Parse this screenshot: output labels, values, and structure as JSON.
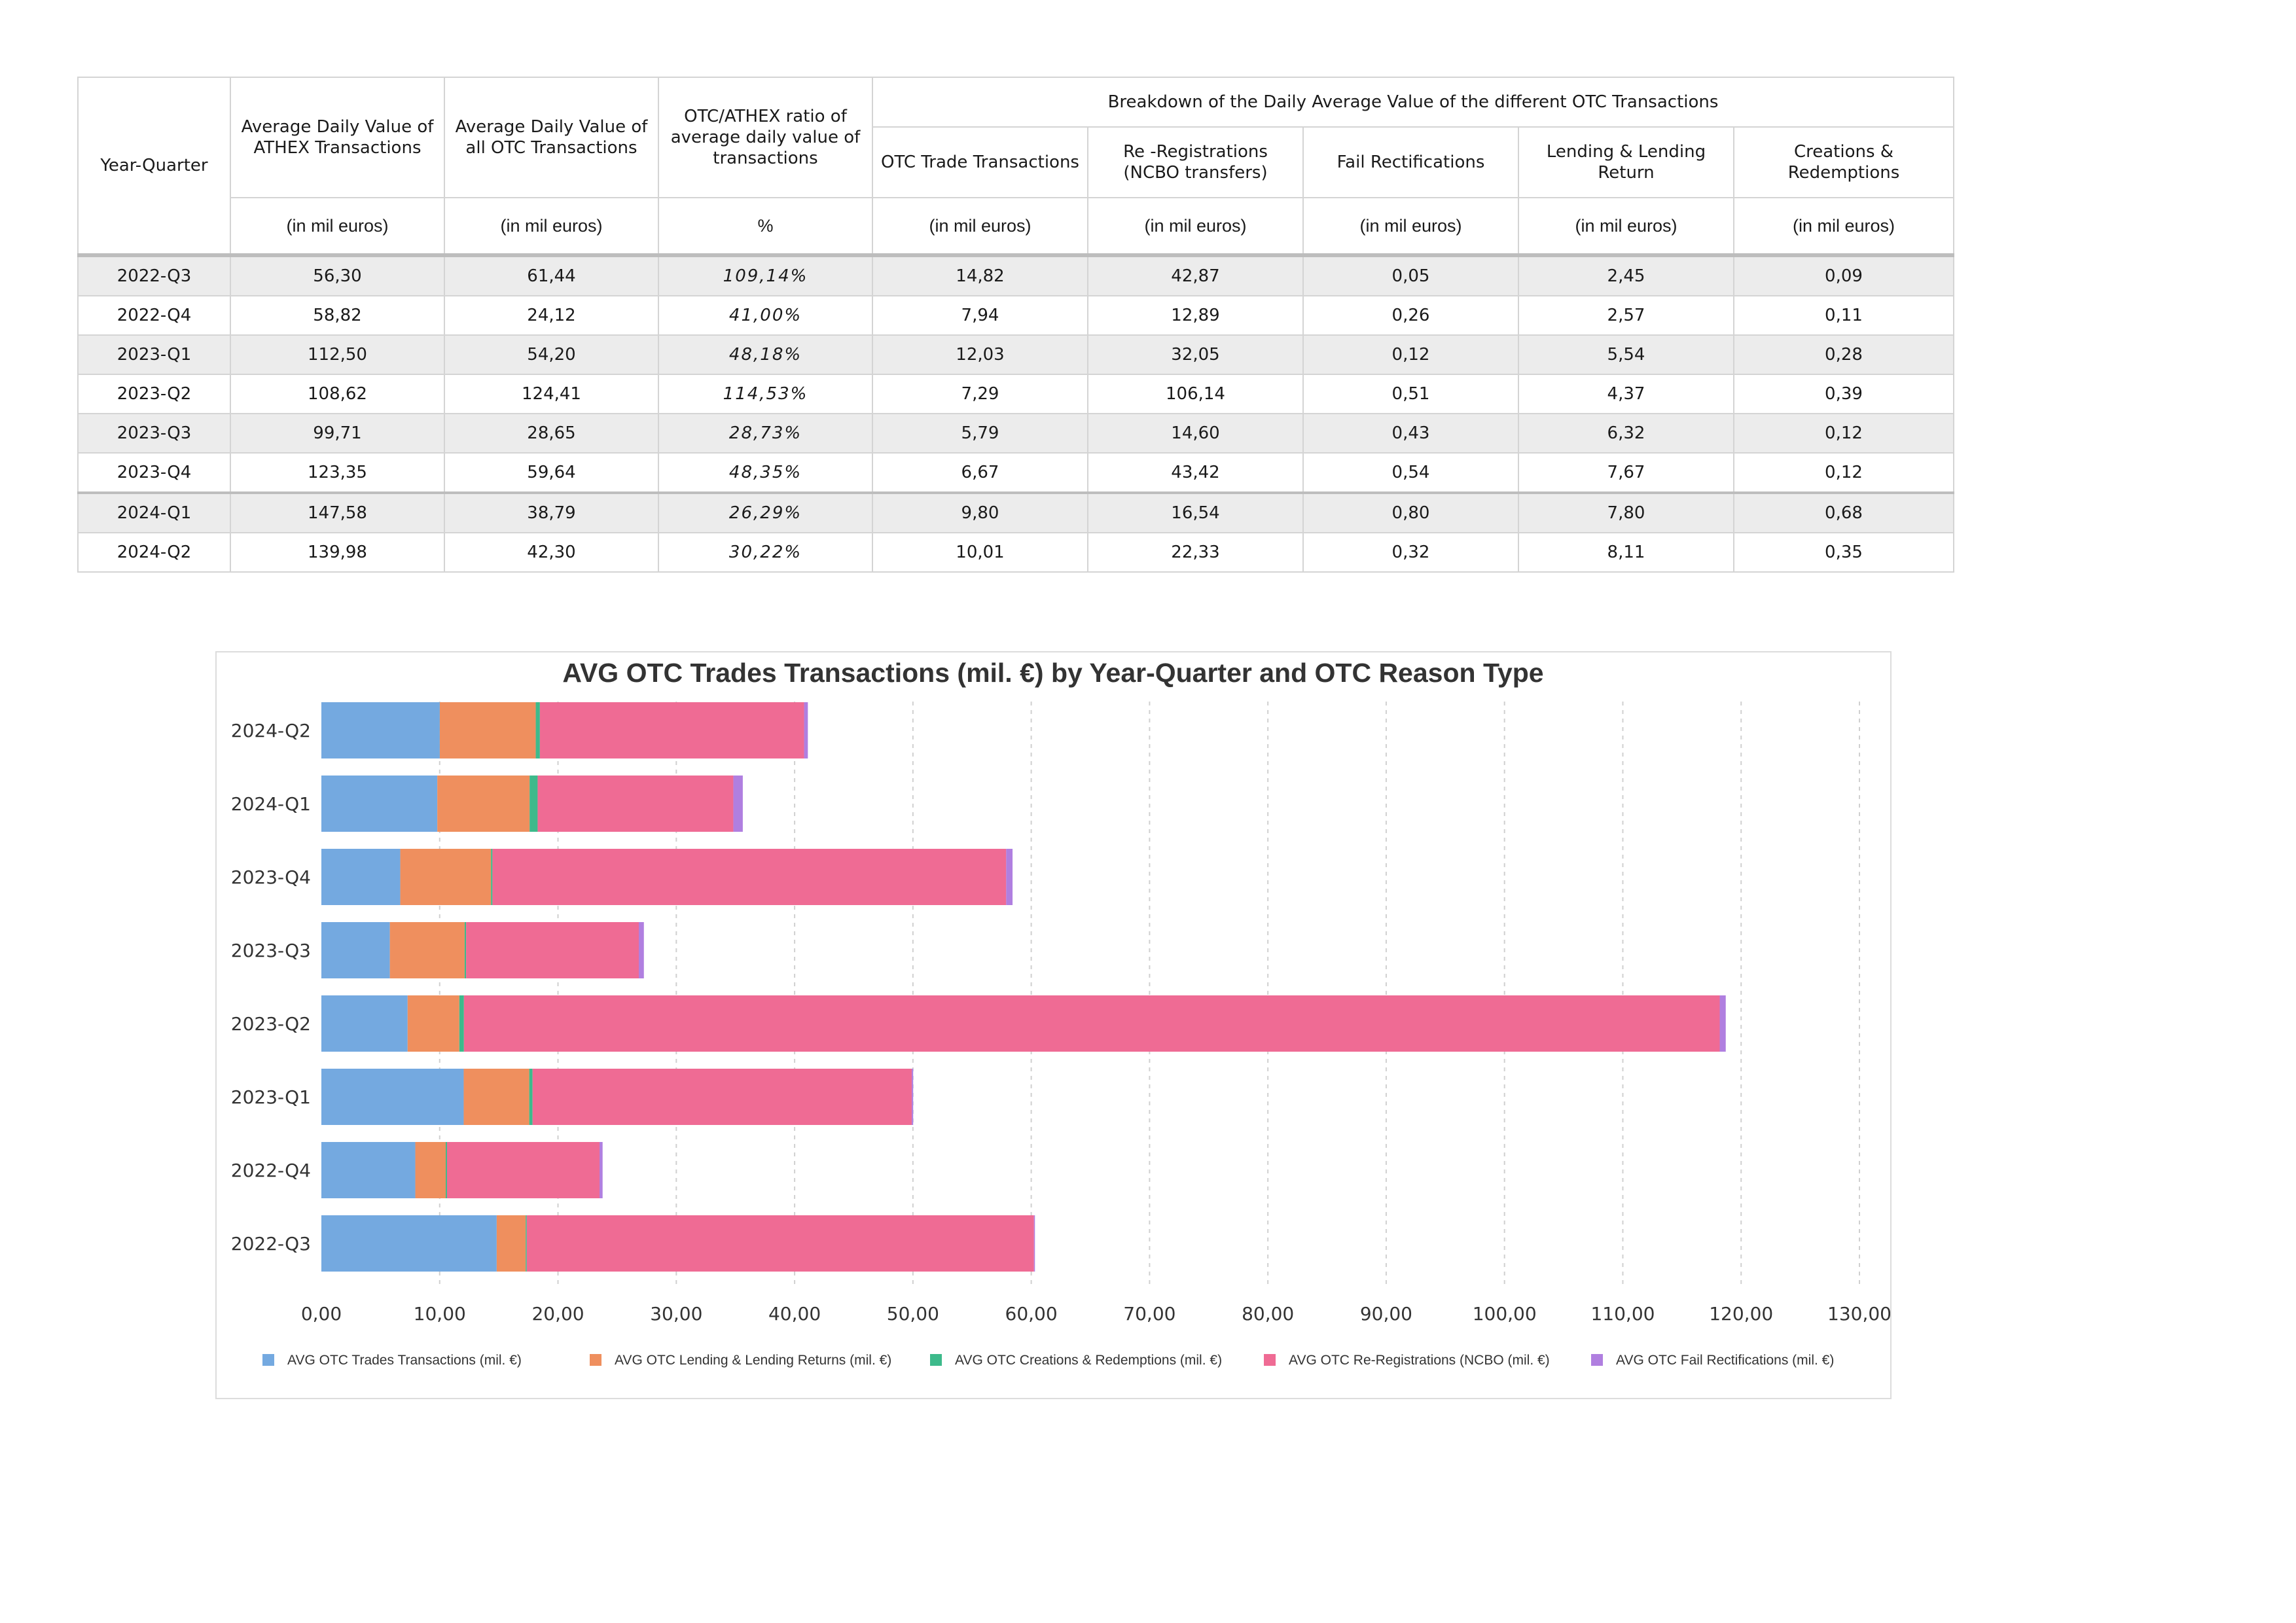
{
  "table": {
    "headers": {
      "year_quarter": "Year-Quarter",
      "athex_avg": "Average Daily Value of ATHEX Transactions",
      "otc_avg": "Average Daily Value of all OTC Transactions",
      "ratio": "OTC/ATHEX ratio of average daily value of transactions",
      "breakdown": "Breakdown of the Daily Average Value of the different OTC Transactions",
      "otc_trade": "OTC Trade Transactions",
      "re_registrations": "Re -Registrations (NCBO transfers)",
      "fail_rect": "Fail Rectifications",
      "lending": "Lending & Lending Return",
      "creations": "Creations & Redemptions"
    },
    "units": {
      "athex_avg": "(in mil euros)",
      "otc_avg": "(in mil euros)",
      "ratio": "%",
      "otc_trade": "(in mil euros)",
      "re_registrations": "(in mil euros)",
      "fail_rect": "(in mil euros)",
      "lending": "(in mil euros)",
      "creations": "(in mil euros)"
    },
    "rows": [
      {
        "yq": "2022-Q3",
        "athex": "56,30",
        "otc": "61,44",
        "ratio": "109,14%",
        "trade": "14,82",
        "rereg": "42,87",
        "fail": "0,05",
        "lending": "2,45",
        "creations": "0,09"
      },
      {
        "yq": "2022-Q4",
        "athex": "58,82",
        "otc": "24,12",
        "ratio": "41,00%",
        "trade": "7,94",
        "rereg": "12,89",
        "fail": "0,26",
        "lending": "2,57",
        "creations": "0,11"
      },
      {
        "yq": "2023-Q1",
        "athex": "112,50",
        "otc": "54,20",
        "ratio": "48,18%",
        "trade": "12,03",
        "rereg": "32,05",
        "fail": "0,12",
        "lending": "5,54",
        "creations": "0,28"
      },
      {
        "yq": "2023-Q2",
        "athex": "108,62",
        "otc": "124,41",
        "ratio": "114,53%",
        "trade": "7,29",
        "rereg": "106,14",
        "fail": "0,51",
        "lending": "4,37",
        "creations": "0,39"
      },
      {
        "yq": "2023-Q3",
        "athex": "99,71",
        "otc": "28,65",
        "ratio": "28,73%",
        "trade": "5,79",
        "rereg": "14,60",
        "fail": "0,43",
        "lending": "6,32",
        "creations": "0,12"
      },
      {
        "yq": "2023-Q4",
        "athex": "123,35",
        "otc": "59,64",
        "ratio": "48,35%",
        "trade": "6,67",
        "rereg": "43,42",
        "fail": "0,54",
        "lending": "7,67",
        "creations": "0,12"
      },
      {
        "yq": "2024-Q1",
        "athex": "147,58",
        "otc": "38,79",
        "ratio": "26,29%",
        "trade": "9,80",
        "rereg": "16,54",
        "fail": "0,80",
        "lending": "7,80",
        "creations": "0,68"
      },
      {
        "yq": "2024-Q2",
        "athex": "139,98",
        "otc": "42,30",
        "ratio": "30,22%",
        "trade": "10,01",
        "rereg": "22,33",
        "fail": "0,32",
        "lending": "8,11",
        "creations": "0,35"
      }
    ]
  },
  "chart_data": {
    "type": "bar",
    "orientation": "horizontal",
    "stacked": true,
    "title": "AVG OTC Trades Transactions (mil. €) by Year-Quarter and OTC Reason Type",
    "categories": [
      "2024-Q2",
      "2024-Q1",
      "2023-Q4",
      "2023-Q3",
      "2023-Q2",
      "2023-Q1",
      "2022-Q4",
      "2022-Q3"
    ],
    "series": [
      {
        "name": "AVG OTC Trades Transactions (mil. €)",
        "color": "#74a9e0",
        "values": [
          10.01,
          9.8,
          6.67,
          5.79,
          7.29,
          12.03,
          7.94,
          14.82
        ]
      },
      {
        "name": "AVG OTC Lending & Lending Returns (mil. €)",
        "color": "#ef8f5e",
        "values": [
          8.11,
          7.8,
          7.67,
          6.32,
          4.37,
          5.54,
          2.57,
          2.45
        ]
      },
      {
        "name": "AVG OTC Creations & Redemptions (mil. €)",
        "color": "#3dba8b",
        "values": [
          0.35,
          0.68,
          0.12,
          0.12,
          0.39,
          0.28,
          0.11,
          0.09
        ]
      },
      {
        "name": "AVG OTC Re-Registrations (NCBO (mil. €)",
        "color": "#ef6b94",
        "values": [
          22.33,
          16.54,
          43.42,
          14.6,
          106.14,
          32.05,
          12.89,
          42.87
        ]
      },
      {
        "name": "AVG OTC Fail Rectifications (mil. €)",
        "color": "#b07fe0",
        "values": [
          0.32,
          0.8,
          0.54,
          0.43,
          0.51,
          0.12,
          0.26,
          0.05
        ]
      }
    ],
    "x_ticks": [
      "0,00",
      "10,00",
      "20,00",
      "30,00",
      "40,00",
      "50,00",
      "60,00",
      "70,00",
      "80,00",
      "90,00",
      "100,00",
      "110,00",
      "120,00",
      "130,00"
    ],
    "xlim": [
      0,
      130
    ],
    "grid": "vertical-dashed",
    "legend_position": "bottom"
  }
}
